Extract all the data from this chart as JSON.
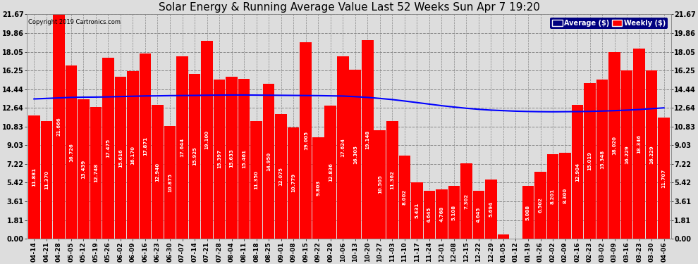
{
  "title": "Solar Energy & Running Average Value Last 52 Weeks Sun Apr 7 19:20",
  "copyright": "Copyright 2019 Cartronics.com",
  "bar_color": "#ff0000",
  "avg_line_color": "#0000ff",
  "background_color": "#dddddd",
  "plot_bg_color": "#dddddd",
  "grid_color": "#888888",
  "yticks": [
    0.0,
    1.81,
    3.61,
    5.42,
    7.22,
    9.03,
    10.83,
    12.64,
    14.44,
    16.25,
    18.05,
    19.86,
    21.67
  ],
  "ylim": [
    0,
    21.67
  ],
  "categories": [
    "04-14",
    "04-21",
    "04-28",
    "05-05",
    "05-12",
    "05-19",
    "05-26",
    "06-02",
    "06-09",
    "06-16",
    "06-23",
    "06-30",
    "07-07",
    "07-14",
    "07-21",
    "07-28",
    "08-04",
    "08-11",
    "08-18",
    "08-25",
    "09-01",
    "09-08",
    "09-15",
    "09-22",
    "09-29",
    "10-06",
    "10-13",
    "10-20",
    "10-27",
    "11-03",
    "11-10",
    "11-17",
    "11-24",
    "12-01",
    "12-08",
    "12-15",
    "12-22",
    "12-29",
    "01-05",
    "01-12",
    "01-19",
    "01-26",
    "02-02",
    "02-09",
    "02-16",
    "02-23",
    "03-02",
    "03-09",
    "03-16",
    "03-23",
    "03-30",
    "04-06"
  ],
  "values": [
    11.881,
    11.37,
    21.666,
    16.726,
    13.439,
    12.748,
    17.475,
    15.616,
    16.17,
    17.871,
    12.94,
    10.875,
    17.644,
    15.925,
    19.1,
    15.397,
    15.633,
    15.461,
    11.35,
    14.95,
    12.075,
    10.779,
    19.005,
    9.803,
    12.836,
    17.624,
    16.305,
    19.148,
    10.505,
    11.362,
    8.002,
    5.431,
    4.645,
    4.768,
    5.108,
    7.302,
    4.645,
    5.694,
    0.392,
    0.0,
    5.088,
    6.502,
    8.201,
    8.3,
    12.904,
    15.019,
    15.348,
    18.02,
    16.229,
    18.346,
    16.229,
    11.707
  ],
  "avg_values": [
    13.5,
    13.55,
    13.6,
    13.65,
    13.67,
    13.68,
    13.7,
    13.73,
    13.76,
    13.79,
    13.8,
    13.82,
    13.83,
    13.84,
    13.86,
    13.87,
    13.88,
    13.88,
    13.87,
    13.86,
    13.85,
    13.84,
    13.83,
    13.82,
    13.8,
    13.78,
    13.72,
    13.65,
    13.55,
    13.44,
    13.3,
    13.15,
    13.0,
    12.85,
    12.72,
    12.6,
    12.5,
    12.42,
    12.37,
    12.32,
    12.29,
    12.27,
    12.26,
    12.27,
    12.28,
    12.3,
    12.33,
    12.37,
    12.42,
    12.48,
    12.56,
    12.64
  ],
  "legend_avg_label": "Average ($)",
  "legend_weekly_label": "Weekly ($)",
  "legend_avg_bg": "#000080",
  "legend_weekly_bg": "#ff0000",
  "value_fontsize": 5.0,
  "tick_fontsize": 7.0,
  "title_fontsize": 11
}
